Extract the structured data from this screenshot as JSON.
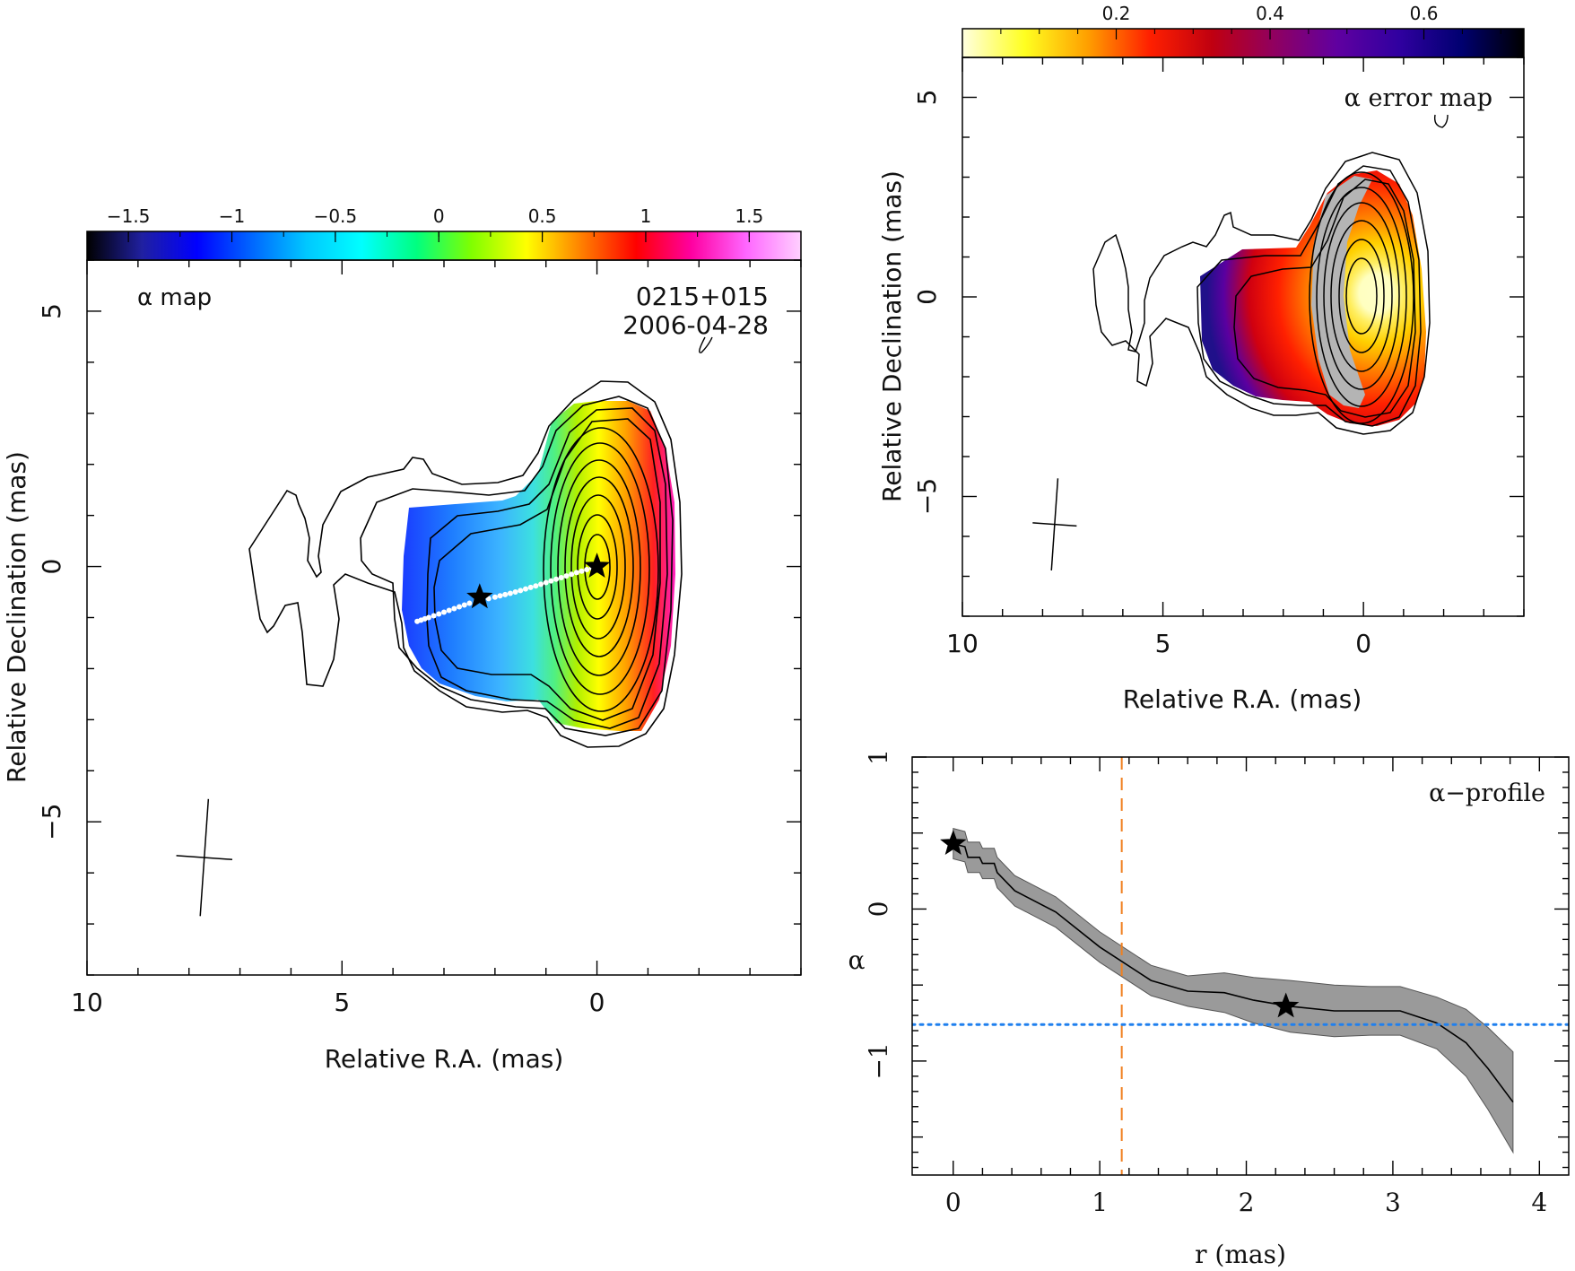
{
  "chart_data": [
    {
      "id": "alpha_map",
      "type": "heatmap",
      "panel_label": "α map",
      "source": "0215+015",
      "epoch": "2006-04-28",
      "xlabel": "Relative R.A. (mas)",
      "ylabel": "Relative Declination (mas)",
      "xlim": [
        10,
        -4
      ],
      "ylim": [
        -8,
        6
      ],
      "xticks": [
        10,
        5,
        0
      ],
      "yticks": [
        5,
        0,
        -5
      ],
      "xtick_labels": [
        "10",
        "5",
        "0"
      ],
      "ytick_labels": [
        "5",
        "0",
        "−5"
      ],
      "colorbar": {
        "range": [
          -1.7,
          1.75
        ],
        "ticks": [
          -1.5,
          -1,
          -0.5,
          0,
          0.5,
          1,
          1.5
        ],
        "tick_labels": [
          "−1.5",
          "−1",
          "−0.5",
          "0",
          "0.5",
          "1",
          "1.5"
        ],
        "colors": [
          "#000000",
          "#2020a0",
          "#0000ff",
          "#0066ff",
          "#00c8ff",
          "#00ffff",
          "#00ff80",
          "#80ff00",
          "#ffff00",
          "#ff8000",
          "#ff0000",
          "#ff00a0",
          "#ff66ff",
          "#ffd0ff"
        ]
      },
      "core_star": [
        0,
        0
      ],
      "jet_star": [
        2.3,
        -0.6
      ],
      "ridge_points": [
        [
          0,
          0
        ],
        [
          0.4,
          -0.12
        ],
        [
          0.8,
          -0.25
        ],
        [
          1.2,
          -0.38
        ],
        [
          1.6,
          -0.5
        ],
        [
          2.0,
          -0.6
        ],
        [
          2.5,
          -0.72
        ],
        [
          2.9,
          -0.86
        ],
        [
          3.3,
          -1.0
        ],
        [
          3.6,
          -1.1
        ]
      ],
      "beam": {
        "center": [
          7.7,
          -5.7
        ],
        "major_mas": 2.3,
        "minor_mas": 1.1
      }
    },
    {
      "id": "alpha_error_map",
      "type": "heatmap",
      "panel_label": "α error map",
      "xlabel": "Relative R.A. (mas)",
      "ylabel": "Relative Declination (mas)",
      "xlim": [
        10,
        -4
      ],
      "ylim": [
        -8,
        6
      ],
      "xticks": [
        10,
        5,
        0
      ],
      "yticks": [
        5,
        0,
        -5
      ],
      "xtick_labels": [
        "10",
        "5",
        "0"
      ],
      "ytick_labels": [
        "5",
        "0",
        "−5"
      ],
      "colorbar": {
        "range": [
          0.0,
          0.73
        ],
        "ticks": [
          0.2,
          0.4,
          0.6
        ],
        "tick_labels": [
          "0.2",
          "0.4",
          "0.6"
        ],
        "colors": [
          "#ffffe0",
          "#ffff20",
          "#ffa000",
          "#ff2000",
          "#c00010",
          "#900060",
          "#6000a0",
          "#3000a0",
          "#000070",
          "#000000"
        ]
      },
      "beam": {
        "center": [
          7.7,
          -5.7
        ],
        "major_mas": 2.3,
        "minor_mas": 1.1
      }
    },
    {
      "id": "alpha_profile",
      "type": "line",
      "panel_label": "α−profile",
      "xlabel": "r (mas)",
      "ylabel": "α",
      "xlim": [
        -0.28,
        4.2
      ],
      "ylim": [
        -1.75,
        1.0
      ],
      "xticks": [
        0,
        1,
        2,
        3,
        4
      ],
      "yticks": [
        1,
        0,
        -1
      ],
      "xtick_labels": [
        "0",
        "1",
        "2",
        "3",
        "4"
      ],
      "ytick_labels": [
        "1",
        "0",
        "−1"
      ],
      "series": [
        {
          "x": [
            0.0,
            0.08,
            0.1,
            0.18,
            0.2,
            0.28,
            0.3,
            0.42,
            0.7,
            1.0,
            1.35,
            1.6,
            1.85,
            2.05,
            2.3,
            2.6,
            2.85,
            3.05,
            3.3,
            3.5,
            3.65,
            3.82
          ],
          "y": [
            0.43,
            0.41,
            0.34,
            0.34,
            0.3,
            0.3,
            0.24,
            0.12,
            -0.02,
            -0.25,
            -0.47,
            -0.54,
            -0.55,
            -0.6,
            -0.64,
            -0.67,
            -0.67,
            -0.67,
            -0.75,
            -0.88,
            -1.05,
            -1.27
          ],
          "err": [
            0.1,
            0.1,
            0.1,
            0.1,
            0.1,
            0.1,
            0.1,
            0.1,
            0.1,
            0.1,
            0.1,
            0.1,
            0.13,
            0.15,
            0.17,
            0.17,
            0.16,
            0.16,
            0.17,
            0.22,
            0.27,
            0.33
          ]
        }
      ],
      "core_star": [
        0.0,
        0.43
      ],
      "jet_star": [
        2.27,
        -0.64
      ],
      "vline": {
        "x": 1.15,
        "color": "#f08020",
        "style": "dashed"
      },
      "hline": {
        "y": -0.76,
        "color": "#2080ee",
        "style": "dotted"
      }
    }
  ]
}
